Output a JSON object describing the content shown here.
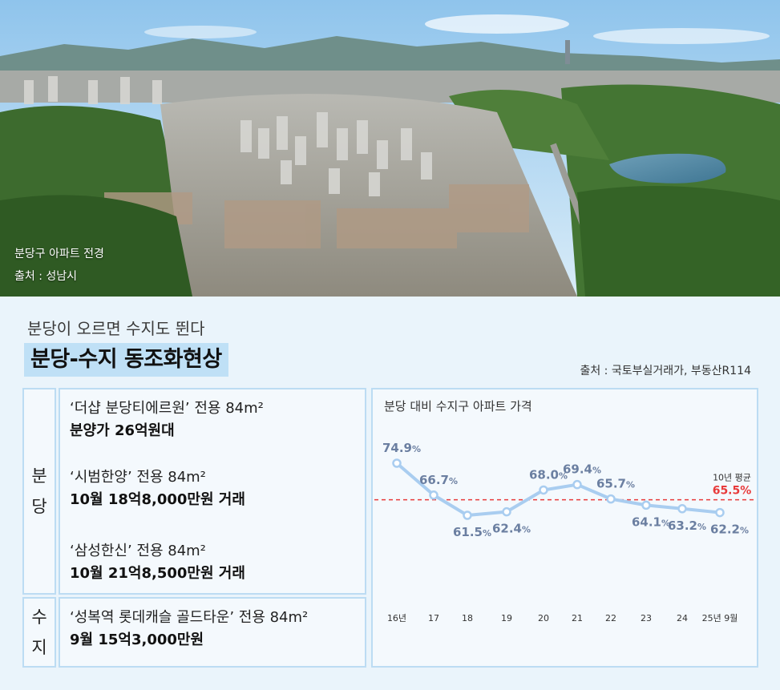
{
  "photo": {
    "caption_line1": "분당구 아파트 전경",
    "caption_line2": "출처 : 성남시"
  },
  "header": {
    "subtitle": "분당이 오르면 수지도 뛴다",
    "title": "분당-수지 동조화현상",
    "source": "출처 : 국토부실거래가, 부동산R114"
  },
  "table": {
    "bundang": {
      "label_chars": [
        "분",
        "당"
      ],
      "entries": [
        {
          "name": "‘더샵 분당티에르원’ 전용 84m²",
          "price": "분양가 26억원대"
        },
        {
          "name": "‘시범한양’ 전용 84m²",
          "price": "10월 18억8,000만원 거래"
        },
        {
          "name": "‘삼성한신’ 전용 84m²",
          "price": "10월 21억8,500만원 거래"
        }
      ]
    },
    "suji": {
      "label_chars": [
        "수",
        "지"
      ],
      "entries": [
        {
          "name": "‘성복역 롯데캐슬 골드타운’ 전용 84m²",
          "price": "9월 15억3,000만원"
        }
      ]
    }
  },
  "chart_data": {
    "type": "line",
    "title": "분당 대비 수지구 아파트 가격",
    "categories": [
      "16년",
      "17",
      "18",
      "19",
      "20",
      "21",
      "22",
      "23",
      "24",
      "25년 9월"
    ],
    "values": [
      74.9,
      66.7,
      61.5,
      62.4,
      68.0,
      69.4,
      65.7,
      64.1,
      63.2,
      62.2
    ],
    "value_labels": [
      "74.9",
      "66.7",
      "61.5",
      "62.4",
      "68.0",
      "69.4",
      "65.7",
      "64.1",
      "63.2",
      "62.2"
    ],
    "unit": "%",
    "reference_line": {
      "name": "10년 평균",
      "value": 65.5,
      "label": "65.5%",
      "color": "#e83b3b"
    },
    "line_color": "#a9cdf0",
    "grid": false
  }
}
